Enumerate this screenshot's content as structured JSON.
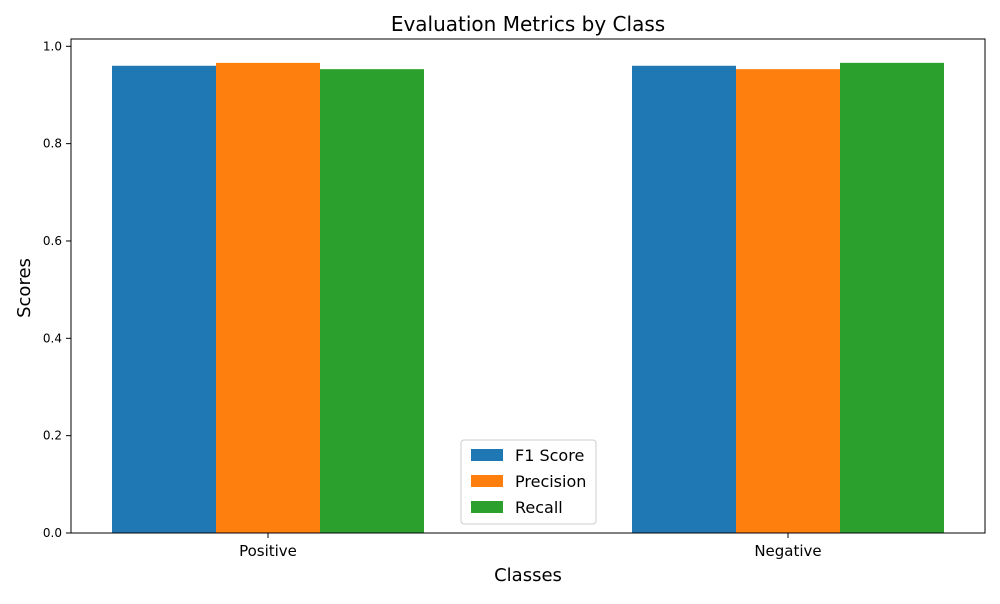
{
  "chart_data": {
    "type": "bar",
    "title": "Evaluation Metrics by Class",
    "xlabel": "Classes",
    "ylabel": "Scores",
    "categories": [
      "Positive",
      "Negative"
    ],
    "series": [
      {
        "name": "F1 Score",
        "values": [
          0.96,
          0.96
        ],
        "color": "#1f77b4"
      },
      {
        "name": "Precision",
        "values": [
          0.966,
          0.953
        ],
        "color": "#ff7f0e"
      },
      {
        "name": "Recall",
        "values": [
          0.953,
          0.966
        ],
        "color": "#2ca02c"
      }
    ],
    "ylim": [
      0,
      1.015
    ],
    "yticks": [
      "0.0",
      "0.2",
      "0.4",
      "0.6",
      "0.8",
      "1.0"
    ],
    "legend_position": "bottom-center",
    "grid": false
  }
}
